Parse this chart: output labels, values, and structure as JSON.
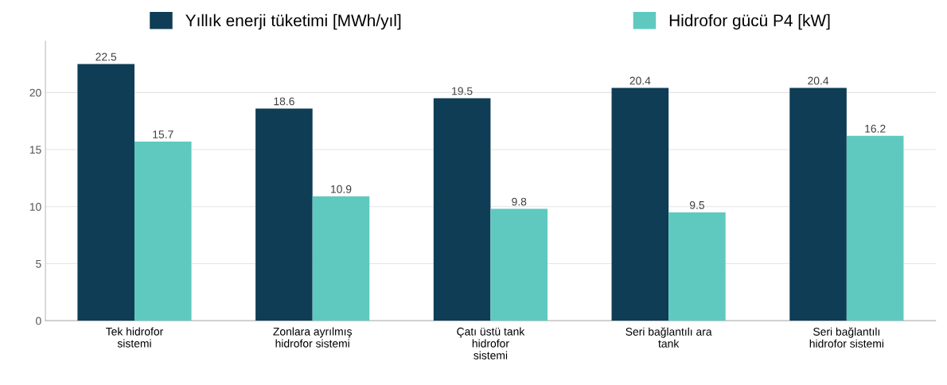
{
  "chart_data": {
    "type": "bar",
    "categories": [
      "Tek hidrofor\nsistemi",
      "Zonlara ayrılmış\nhidrofor sistemi",
      "Çatı üstü tank\nhidrofor\nsistemi",
      "Seri bağlantılı ara\ntank",
      "Seri bağlantılı\nhidrofor sistemi"
    ],
    "series": [
      {
        "name": "Yıllık enerji tüketimi [MWh/yıl]",
        "color": "#0e3d55",
        "values": [
          22.5,
          18.6,
          19.5,
          20.4,
          20.4
        ]
      },
      {
        "name": "Hidrofor gücü P4 [kW]",
        "color": "#5fc9c0",
        "values": [
          15.7,
          10.9,
          9.8,
          9.5,
          16.2
        ]
      }
    ],
    "ylim": [
      0,
      24.5
    ],
    "yticks": [
      0,
      5,
      10,
      15,
      20
    ],
    "grid": "y",
    "legend": "top",
    "data_labels": true
  }
}
